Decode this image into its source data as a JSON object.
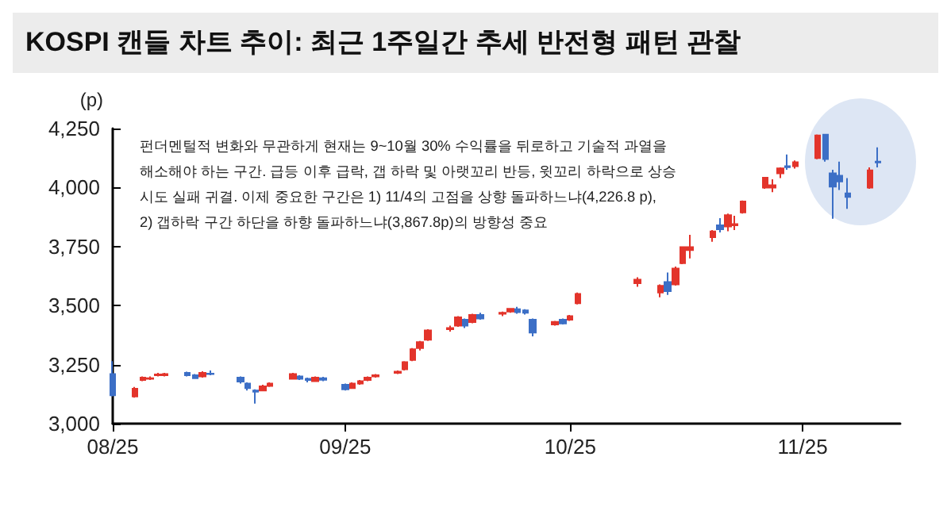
{
  "chart_data": {
    "type": "candlestick",
    "title": "KOSPI 캔들 차트 추이: 최근 1주일간 추세 반전형 패턴 관찰",
    "ylabel": "(p)",
    "annotations": [
      "펀더멘털적 변화와 무관하게 현재는 9~10월 30% 수익률을 뒤로하고 기술적 과열을\n해소해야 하는 구간. 급등 이후 급락, 갭 하락 및 아랫꼬리 반등, 윗꼬리 하락으로 상승\n시도 실패 귀결. 이제 중요한 구간은 1) 11/4의 고점을 상향 돌파하느냐(4,226.8 p),\n2) 갭하락 구간 하단을 하향 돌파하느냐(3,867.8p)의 방향성 중요"
    ],
    "colors": [
      "#3c6fc6",
      "#e3342b",
      "#e3342b",
      "#e3342b",
      "#e3342b",
      "#e3342b",
      "#3c6fc6",
      "#3c6fc6",
      "#e3342b",
      "#3c6fc6",
      "#3c6fc6",
      "#3c6fc6",
      "#3c6fc6",
      "#e3342b",
      "#e3342b",
      "#e3342b",
      "#3c6fc6",
      "#3c6fc6",
      "#e3342b",
      "#3c6fc6",
      "#3c6fc6",
      "#e3342b",
      "#e3342b",
      "#e3342b",
      "#e3342b",
      "#e3342b",
      "#e3342b",
      "#e3342b",
      "#e3342b",
      "#e3342b",
      "#e3342b",
      "#e3342b",
      "#3c6fc6",
      "#e3342b",
      "#3c6fc6",
      "#e3342b",
      "#e3342b",
      "#3c6fc6",
      "#3c6fc6",
      "#3c6fc6",
      "#e3342b",
      "#3c6fc6",
      "#e3342b",
      "#e3342b",
      "#e3342b",
      "#e3342b",
      "#3c6fc6",
      "#e3342b",
      "#e3342b",
      "#e3342b",
      "#e3342b",
      "#3c6fc6",
      "#e3342b",
      "#e3342b",
      "#e3342b",
      "#e3342b",
      "#e3342b",
      "#e3342b",
      "#3c6fc6",
      "#e3342b",
      "#e3342b",
      "#3c6fc6",
      "#3c6fc6",
      "#3c6fc6",
      "#3c6fc6",
      "#e3342b",
      "#3c6fc6"
    ],
    "x": [
      "2025-08-01",
      "2025-08-04",
      "2025-08-05",
      "2025-08-06",
      "2025-08-07",
      "2025-08-08",
      "2025-08-11",
      "2025-08-12",
      "2025-08-13",
      "2025-08-14",
      "2025-08-18",
      "2025-08-19",
      "2025-08-20",
      "2025-08-21",
      "2025-08-22",
      "2025-08-25",
      "2025-08-26",
      "2025-08-27",
      "2025-08-28",
      "2025-08-29",
      "2025-09-01",
      "2025-09-02",
      "2025-09-03",
      "2025-09-04",
      "2025-09-05",
      "2025-09-08",
      "2025-09-09",
      "2025-09-10",
      "2025-09-11",
      "2025-09-12",
      "2025-09-15",
      "2025-09-16",
      "2025-09-17",
      "2025-09-18",
      "2025-09-19",
      "2025-09-22",
      "2025-09-23",
      "2025-09-24",
      "2025-09-25",
      "2025-09-26",
      "2025-09-29",
      "2025-09-30",
      "2025-10-01",
      "2025-10-02",
      "2025-10-10",
      "2025-10-13",
      "2025-10-14",
      "2025-10-15",
      "2025-10-16",
      "2025-10-17",
      "2025-10-20",
      "2025-10-21",
      "2025-10-22",
      "2025-10-23",
      "2025-10-24",
      "2025-10-27",
      "2025-10-28",
      "2025-10-29",
      "2025-10-30",
      "2025-10-31",
      "2025-11-03",
      "2025-11-04",
      "2025-11-05",
      "2025-11-06",
      "2025-11-07",
      "2025-11-10",
      "2025-11-11"
    ],
    "ohlc": [
      [
        3210,
        3265,
        3115,
        3120
      ],
      [
        3115,
        3155,
        3110,
        3148
      ],
      [
        3185,
        3200,
        3180,
        3195
      ],
      [
        3190,
        3200,
        3185,
        3192
      ],
      [
        3205,
        3215,
        3200,
        3208
      ],
      [
        3205,
        3215,
        3200,
        3210
      ],
      [
        3215,
        3220,
        3200,
        3205
      ],
      [
        3205,
        3210,
        3190,
        3192
      ],
      [
        3200,
        3222,
        3195,
        3215
      ],
      [
        3212,
        3225,
        3205,
        3210
      ],
      [
        3195,
        3200,
        3170,
        3178
      ],
      [
        3170,
        3175,
        3140,
        3150
      ],
      [
        3140,
        3145,
        3085,
        3135
      ],
      [
        3140,
        3165,
        3138,
        3158
      ],
      [
        3160,
        3175,
        3155,
        3170
      ],
      [
        3190,
        3215,
        3188,
        3210
      ],
      [
        3200,
        3205,
        3185,
        3190
      ],
      [
        3190,
        3195,
        3175,
        3185
      ],
      [
        3180,
        3200,
        3178,
        3195
      ],
      [
        3192,
        3198,
        3180,
        3186
      ],
      [
        3165,
        3170,
        3140,
        3145
      ],
      [
        3150,
        3175,
        3148,
        3170
      ],
      [
        3170,
        3185,
        3165,
        3180
      ],
      [
        3185,
        3200,
        3180,
        3195
      ],
      [
        3200,
        3210,
        3195,
        3205
      ],
      [
        3215,
        3225,
        3210,
        3220
      ],
      [
        3230,
        3265,
        3225,
        3260
      ],
      [
        3270,
        3320,
        3265,
        3315
      ],
      [
        3320,
        3350,
        3310,
        3345
      ],
      [
        3355,
        3400,
        3350,
        3395
      ],
      [
        3400,
        3415,
        3390,
        3405
      ],
      [
        3415,
        3455,
        3410,
        3450
      ],
      [
        3440,
        3445,
        3405,
        3415
      ],
      [
        3430,
        3465,
        3425,
        3460
      ],
      [
        3460,
        3470,
        3440,
        3445
      ],
      [
        3465,
        3475,
        3455,
        3470
      ],
      [
        3475,
        3490,
        3470,
        3486
      ],
      [
        3485,
        3495,
        3465,
        3472
      ],
      [
        3480,
        3485,
        3462,
        3470
      ],
      [
        3440,
        3445,
        3370,
        3386
      ],
      [
        3420,
        3435,
        3415,
        3431
      ],
      [
        3440,
        3445,
        3420,
        3424
      ],
      [
        3440,
        3460,
        3435,
        3455
      ],
      [
        3510,
        3555,
        3505,
        3549
      ],
      [
        3595,
        3620,
        3580,
        3610
      ],
      [
        3555,
        3590,
        3535,
        3584
      ],
      [
        3600,
        3640,
        3545,
        3561
      ],
      [
        3590,
        3665,
        3585,
        3657
      ],
      [
        3680,
        3750,
        3675,
        3748
      ],
      [
        3735,
        3800,
        3700,
        3748
      ],
      [
        3790,
        3820,
        3770,
        3814
      ],
      [
        3840,
        3870,
        3810,
        3823
      ],
      [
        3835,
        3890,
        3815,
        3883
      ],
      [
        3840,
        3880,
        3820,
        3845
      ],
      [
        3895,
        3945,
        3890,
        3941
      ],
      [
        4000,
        4045,
        3995,
        4042
      ],
      [
        4000,
        4035,
        3980,
        4010
      ],
      [
        4060,
        4085,
        4040,
        4081
      ],
      [
        4090,
        4140,
        4075,
        4086
      ],
      [
        4090,
        4115,
        4080,
        4107
      ],
      [
        4125,
        4225,
        4120,
        4221
      ],
      [
        4224,
        4227,
        4110,
        4121
      ],
      [
        4060,
        4075,
        3868,
        4004
      ],
      [
        4050,
        4110,
        3990,
        4026
      ],
      [
        3975,
        4040,
        3910,
        3960
      ],
      [
        4000,
        4085,
        3995,
        4073
      ],
      [
        4110,
        4170,
        4085,
        4106
      ]
    ],
    "xlim": [
      "2025-08-01",
      "2025-11-14"
    ],
    "xticks": [
      {
        "value": "2025-08-01",
        "label": "08/25"
      },
      {
        "value": "2025-09-01",
        "label": "09/25"
      },
      {
        "value": "2025-10-01",
        "label": "10/25"
      },
      {
        "value": "2025-11-01",
        "label": "11/25"
      }
    ],
    "ylim": [
      3000,
      4250
    ],
    "yticks": [
      {
        "value": 3000,
        "label": "3,000"
      },
      {
        "value": 3250,
        "label": "3,250"
      },
      {
        "value": 3500,
        "label": "3,500"
      },
      {
        "value": 3750,
        "label": "3,750"
      },
      {
        "value": 4000,
        "label": "4,000"
      },
      {
        "value": 4250,
        "label": "4,250"
      }
    ],
    "grid": false
  }
}
